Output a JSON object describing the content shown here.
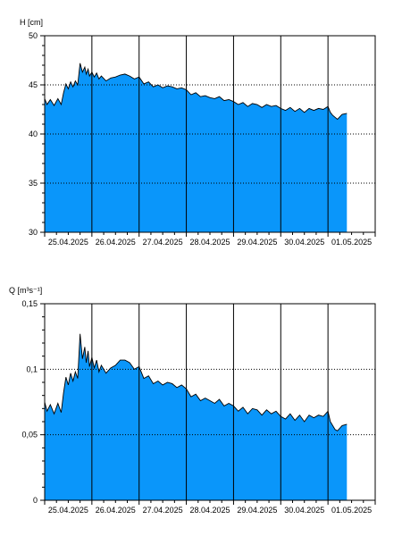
{
  "colors": {
    "fill": "#0a96fa",
    "line": "#000000",
    "grid": "#000000",
    "background": "#ffffff"
  },
  "chart_data": [
    {
      "type": "area",
      "ylabel": "H [cm]",
      "ylim": [
        30,
        50
      ],
      "yticks": [
        30,
        35,
        40,
        45,
        50
      ],
      "yticklabels": [
        "30",
        "35",
        "40",
        "45",
        "50"
      ],
      "xlim": [
        0,
        7
      ],
      "xlabels": [
        "25.04.2025",
        "26.04.2025",
        "27.04.2025",
        "28.04.2025",
        "29.04.2025",
        "30.04.2025",
        "01.05.2025"
      ],
      "day_lines": [
        1,
        2,
        3,
        4,
        5,
        6
      ],
      "grid_horizontal": [
        35,
        40,
        45
      ],
      "series": [
        {
          "x": [
            0,
            0.05,
            0.12,
            0.2,
            0.28,
            0.35,
            0.4,
            0.45,
            0.5,
            0.55,
            0.6,
            0.65,
            0.7,
            0.75,
            0.8,
            0.85,
            0.88,
            0.92,
            0.95,
            1.0,
            1.05,
            1.1,
            1.15,
            1.2,
            1.3,
            1.4,
            1.5,
            1.6,
            1.7,
            1.8,
            1.9,
            2.0,
            2.1,
            2.2,
            2.3,
            2.4,
            2.5,
            2.6,
            2.7,
            2.8,
            2.9,
            3.0,
            3.1,
            3.2,
            3.3,
            3.4,
            3.5,
            3.6,
            3.7,
            3.8,
            3.9,
            4.0,
            4.1,
            4.2,
            4.3,
            4.4,
            4.5,
            4.6,
            4.7,
            4.8,
            4.9,
            5.0,
            5.1,
            5.2,
            5.3,
            5.4,
            5.5,
            5.6,
            5.7,
            5.8,
            5.9,
            6.0,
            6.05,
            6.1,
            6.15,
            6.2,
            6.3,
            6.4
          ],
          "y": [
            43.6,
            43.0,
            43.5,
            42.9,
            43.6,
            43.0,
            44.2,
            45.1,
            44.6,
            45.3,
            44.8,
            45.4,
            45.0,
            47.2,
            46.3,
            46.8,
            46.1,
            46.6,
            45.9,
            46.3,
            45.8,
            46.2,
            45.6,
            45.9,
            45.4,
            45.7,
            45.8,
            46.0,
            46.1,
            45.9,
            45.6,
            45.8,
            45.1,
            45.3,
            44.8,
            45.0,
            44.7,
            44.9,
            44.8,
            44.6,
            44.7,
            44.5,
            44.0,
            44.2,
            43.8,
            43.9,
            43.7,
            43.6,
            43.8,
            43.4,
            43.5,
            43.3,
            43.0,
            43.2,
            42.8,
            43.1,
            43.0,
            42.7,
            43.0,
            42.8,
            42.9,
            42.6,
            42.4,
            42.7,
            42.3,
            42.6,
            42.2,
            42.6,
            42.4,
            42.6,
            42.5,
            42.8,
            42.2,
            41.9,
            41.7,
            41.5,
            42.0,
            42.1
          ]
        }
      ]
    },
    {
      "type": "area",
      "ylabel": "Q [m³s⁻¹]",
      "ylim": [
        0,
        0.15
      ],
      "yticks": [
        0,
        0.05,
        0.1,
        0.15
      ],
      "yticklabels": [
        "0",
        "0,05",
        "0,1",
        "0,15"
      ],
      "xlim": [
        0,
        7
      ],
      "xlabels": [
        "25.04.2025",
        "26.04.2025",
        "27.04.2025",
        "28.04.2025",
        "29.04.2025",
        "30.04.2025",
        "01.05.2025"
      ],
      "day_lines": [
        1,
        2,
        3,
        4,
        5,
        6
      ],
      "grid_horizontal": [
        0.05,
        0.1
      ],
      "series": [
        {
          "x": [
            0,
            0.05,
            0.12,
            0.2,
            0.28,
            0.35,
            0.4,
            0.45,
            0.5,
            0.55,
            0.6,
            0.65,
            0.7,
            0.75,
            0.8,
            0.85,
            0.88,
            0.92,
            0.95,
            1.0,
            1.05,
            1.1,
            1.15,
            1.2,
            1.3,
            1.4,
            1.5,
            1.6,
            1.7,
            1.8,
            1.9,
            2.0,
            2.1,
            2.2,
            2.3,
            2.4,
            2.5,
            2.6,
            2.7,
            2.8,
            2.9,
            3.0,
            3.1,
            3.2,
            3.3,
            3.4,
            3.5,
            3.6,
            3.7,
            3.8,
            3.9,
            4.0,
            4.1,
            4.2,
            4.3,
            4.4,
            4.5,
            4.6,
            4.7,
            4.8,
            4.9,
            5.0,
            5.1,
            5.2,
            5.3,
            5.4,
            5.5,
            5.6,
            5.7,
            5.8,
            5.9,
            6.0,
            6.05,
            6.1,
            6.15,
            6.2,
            6.3,
            6.4
          ],
          "y": [
            0.075,
            0.068,
            0.073,
            0.066,
            0.074,
            0.067,
            0.082,
            0.094,
            0.088,
            0.097,
            0.091,
            0.098,
            0.093,
            0.127,
            0.108,
            0.117,
            0.105,
            0.114,
            0.102,
            0.109,
            0.101,
            0.107,
            0.098,
            0.103,
            0.097,
            0.101,
            0.103,
            0.107,
            0.107,
            0.105,
            0.1,
            0.102,
            0.093,
            0.095,
            0.089,
            0.091,
            0.088,
            0.09,
            0.089,
            0.086,
            0.088,
            0.085,
            0.079,
            0.081,
            0.076,
            0.078,
            0.076,
            0.074,
            0.077,
            0.072,
            0.074,
            0.072,
            0.068,
            0.071,
            0.066,
            0.07,
            0.069,
            0.065,
            0.069,
            0.066,
            0.068,
            0.064,
            0.062,
            0.066,
            0.061,
            0.065,
            0.06,
            0.065,
            0.063,
            0.065,
            0.064,
            0.068,
            0.06,
            0.057,
            0.054,
            0.053,
            0.057,
            0.058
          ]
        }
      ]
    }
  ]
}
